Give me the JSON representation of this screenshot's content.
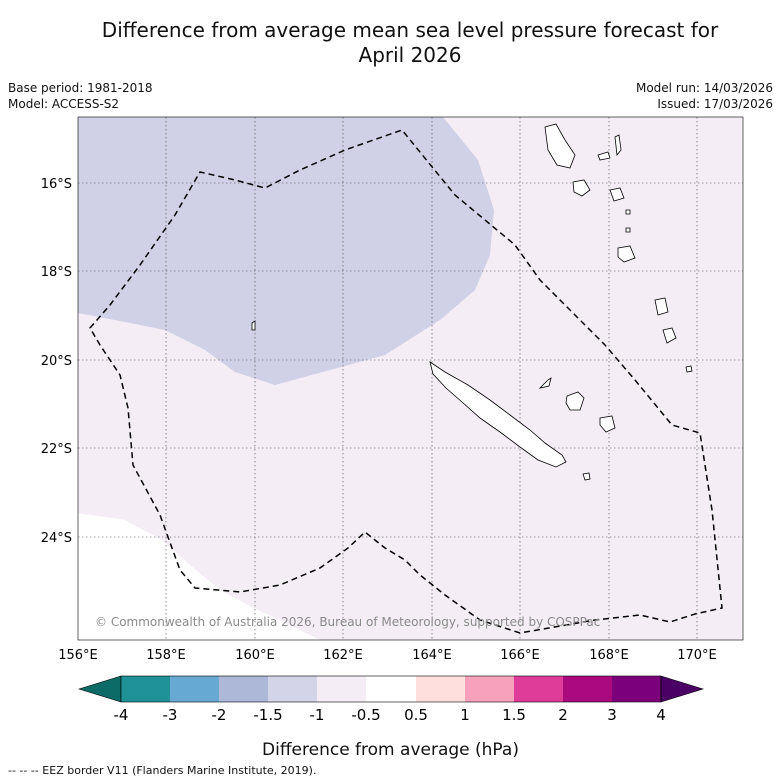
{
  "title": {
    "line1": "Difference from average mean sea level pressure forecast for",
    "line2": "April 2026"
  },
  "meta": {
    "base_period": "Base period: 1981-2018",
    "model": "Model: ACCESS-S2",
    "model_run": "Model run: 14/03/2026",
    "issued": "Issued: 17/03/2026"
  },
  "map": {
    "lat_labels": [
      "16°S",
      "18°S",
      "20°S",
      "22°S",
      "24°S"
    ],
    "lon_labels": [
      "156°E",
      "158°E",
      "160°E",
      "162°E",
      "164°E",
      "166°E",
      "168°E",
      "170°E"
    ],
    "copyright": "© Commonwealth of Australia 2026, Bureau of Meteorology, supported by COSPPac",
    "colors": {
      "neg1_to_neg15": "#d0d1e6",
      "neg05_to_neg1": "#f4edf6",
      "neutral": "#ffffff"
    }
  },
  "colorbar": {
    "tick_labels": [
      "-4",
      "-3",
      "-2",
      "-1.5",
      "-1",
      "-0.5",
      "0.5",
      "1",
      "1.5",
      "2",
      "3",
      "4"
    ],
    "colors": [
      "#0d6b67",
      "#1e9297",
      "#66a9d2",
      "#adb8d9",
      "#d4d4e9",
      "#f4edf6",
      "#ffffff",
      "#ffdede",
      "#f7a1bd",
      "#df3b99",
      "#aa0a7e",
      "#7a017a",
      "#4a0064"
    ],
    "label": "Difference from average (hPa)"
  },
  "footnote": "--  --  -- EEZ border V11 (Flanders Marine Institute, 2019)."
}
